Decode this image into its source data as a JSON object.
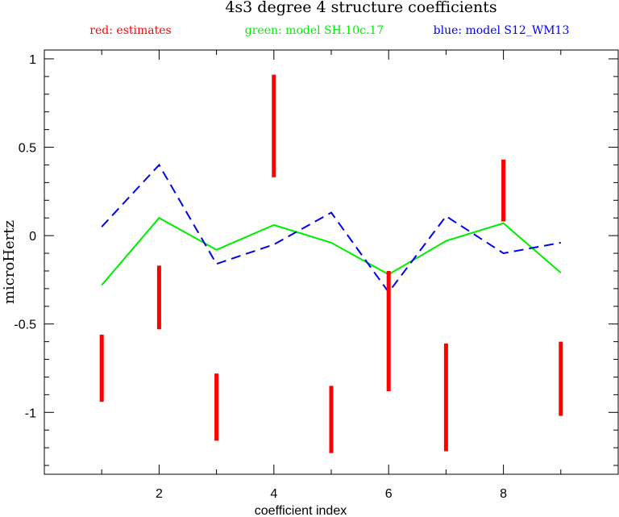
{
  "chart_data": {
    "type": "line",
    "title": "4s3 degree 4 structure coefficients",
    "xlabel": "coefficient index",
    "ylabel": "microHertz",
    "xlim": [
      0,
      10
    ],
    "ylim": [
      -1.35,
      1.05
    ],
    "x_ticks": [
      2,
      4,
      6,
      8
    ],
    "y_ticks": [
      -1,
      -0.5,
      0,
      0.5,
      1
    ],
    "y_tick_labels": [
      "-1",
      "-0.5",
      "0",
      "0.5",
      "1"
    ],
    "legend": [
      {
        "text": "red: estimates",
        "color": "#ff0000"
      },
      {
        "text": "green: model SH.10c.17",
        "color": "#00ee00"
      },
      {
        "text": "blue: model S12_WM13",
        "color": "#0000ee"
      }
    ],
    "estimates": {
      "name": "estimates",
      "color": "#ff0000",
      "x": [
        1,
        2,
        3,
        4,
        5,
        6,
        7,
        8,
        9
      ],
      "low": [
        -0.94,
        -0.53,
        -1.16,
        0.33,
        -1.23,
        -0.88,
        -1.22,
        0.08,
        -1.02
      ],
      "high": [
        -0.56,
        -0.17,
        -0.78,
        0.91,
        -0.85,
        -0.2,
        -0.61,
        0.43,
        -0.6
      ]
    },
    "series": [
      {
        "name": "model SH.10c.17",
        "color": "#00ee00",
        "style": "solid",
        "x": [
          1,
          2,
          3,
          4,
          5,
          6,
          7,
          8,
          9
        ],
        "values": [
          -0.28,
          0.1,
          -0.08,
          0.06,
          -0.04,
          -0.22,
          -0.03,
          0.07,
          -0.21
        ]
      },
      {
        "name": "model S12_WM13",
        "color": "#0000ee",
        "style": "dashed",
        "x": [
          1,
          2,
          3,
          4,
          5,
          6,
          7,
          8,
          9
        ],
        "values": [
          0.05,
          0.4,
          -0.16,
          -0.05,
          0.13,
          -0.32,
          0.11,
          -0.1,
          -0.04
        ]
      }
    ],
    "grid": false
  }
}
